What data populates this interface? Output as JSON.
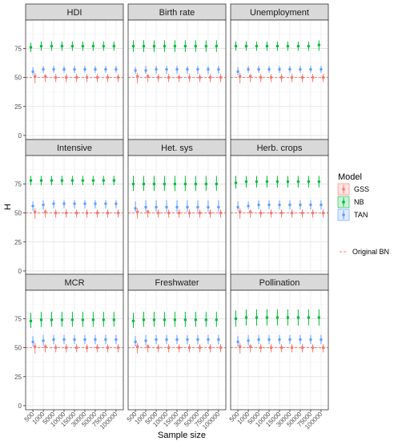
{
  "chart_data": {
    "type": "scatter",
    "subtype": "faceted point-range",
    "xlabel": "Sample size",
    "ylabel": "H",
    "ylim": [
      0,
      100
    ],
    "yticks": [
      0,
      25,
      50,
      75
    ],
    "categories": [
      "500",
      "1000",
      "5000",
      "10000",
      "15000",
      "30000",
      "50000",
      "75000",
      "100000"
    ],
    "legend": {
      "title": "Model",
      "placement": "right",
      "entries": [
        {
          "name": "GSS",
          "color": "#F8766D"
        },
        {
          "name": "NB",
          "color": "#00BA38"
        },
        {
          "name": "TAN",
          "color": "#619CFF"
        }
      ],
      "reference_label": "Original BN",
      "reference_color": "#F8766D"
    },
    "reference_line": {
      "name": "Original BN",
      "y": 50,
      "style": "dashed"
    },
    "grid": true,
    "facets": [
      {
        "title": "HDI",
        "series": [
          {
            "name": "NB",
            "values": [
              76,
              77,
              77,
              77,
              77,
              77,
              77,
              77,
              77
            ],
            "low": [
              72,
              73,
              73,
              73,
              73,
              73,
              73,
              73,
              73
            ],
            "high": [
              80,
              81,
              81,
              81,
              81,
              81,
              81,
              81,
              81
            ]
          },
          {
            "name": "TAN",
            "values": [
              55,
              57,
              57,
              57,
              57,
              57,
              57,
              57,
              57
            ],
            "low": [
              52,
              54,
              54,
              54,
              54,
              54,
              54,
              54,
              54
            ],
            "high": [
              59,
              60,
              60,
              60,
              60,
              60,
              60,
              60,
              60
            ]
          },
          {
            "name": "GSS",
            "values": [
              51,
              51,
              50,
              50,
              50,
              50,
              50,
              50,
              50
            ],
            "low": [
              45,
              46,
              46,
              46,
              46,
              46,
              46,
              46,
              46
            ],
            "high": [
              54,
              53,
              53,
              53,
              53,
              53,
              53,
              53,
              53
            ]
          }
        ]
      },
      {
        "title": "Birth rate",
        "series": [
          {
            "name": "NB",
            "values": [
              77,
              77,
              77,
              77,
              77,
              77,
              77,
              77,
              77
            ],
            "low": [
              72,
              72,
              72,
              72,
              72,
              72,
              72,
              72,
              72
            ],
            "high": [
              82,
              82,
              82,
              82,
              82,
              82,
              82,
              82,
              82
            ]
          },
          {
            "name": "TAN",
            "values": [
              56,
              56,
              57,
              57,
              57,
              57,
              57,
              57,
              57
            ],
            "low": [
              53,
              53,
              53,
              53,
              53,
              53,
              53,
              53,
              53
            ],
            "high": [
              59,
              60,
              60,
              60,
              60,
              60,
              60,
              60,
              60
            ]
          },
          {
            "name": "GSS",
            "values": [
              51,
              51,
              50,
              50,
              50,
              50,
              50,
              50,
              50
            ],
            "low": [
              45,
              46,
              46,
              46,
              46,
              46,
              46,
              46,
              46
            ],
            "high": [
              54,
              53,
              53,
              53,
              53,
              53,
              53,
              53,
              53
            ]
          }
        ]
      },
      {
        "title": "Unemployment",
        "series": [
          {
            "name": "NB",
            "values": [
              77,
              77,
              77,
              77,
              77,
              77,
              77,
              77,
              78
            ],
            "low": [
              73,
              73,
              73,
              73,
              73,
              73,
              73,
              73,
              73
            ],
            "high": [
              81,
              81,
              81,
              81,
              81,
              81,
              81,
              81,
              82
            ]
          },
          {
            "name": "TAN",
            "values": [
              55,
              57,
              57,
              57,
              57,
              57,
              57,
              57,
              57
            ],
            "low": [
              52,
              54,
              54,
              54,
              54,
              54,
              54,
              54,
              54
            ],
            "high": [
              59,
              60,
              60,
              60,
              60,
              60,
              60,
              60,
              60
            ]
          },
          {
            "name": "GSS",
            "values": [
              51,
              51,
              50,
              50,
              50,
              50,
              50,
              50,
              50
            ],
            "low": [
              45,
              46,
              46,
              46,
              46,
              46,
              46,
              46,
              46
            ],
            "high": [
              54,
              53,
              53,
              53,
              53,
              53,
              53,
              53,
              53
            ]
          }
        ]
      },
      {
        "title": "Intensive",
        "series": [
          {
            "name": "NB",
            "values": [
              78,
              78,
              78,
              78,
              78,
              78,
              78,
              78,
              78
            ],
            "low": [
              74,
              74,
              74,
              74,
              74,
              74,
              74,
              74,
              74
            ],
            "high": [
              82,
              82,
              82,
              82,
              82,
              82,
              82,
              82,
              82
            ]
          },
          {
            "name": "TAN",
            "values": [
              56,
              57,
              58,
              58,
              58,
              58,
              58,
              58,
              58
            ],
            "low": [
              52,
              53,
              54,
              54,
              54,
              54,
              54,
              54,
              54
            ],
            "high": [
              60,
              61,
              61,
              61,
              61,
              61,
              61,
              61,
              61
            ]
          },
          {
            "name": "GSS",
            "values": [
              51,
              51,
              50,
              50,
              50,
              50,
              50,
              50,
              50
            ],
            "low": [
              45,
              46,
              46,
              46,
              46,
              46,
              46,
              46,
              46
            ],
            "high": [
              54,
              53,
              53,
              53,
              53,
              53,
              53,
              53,
              53
            ]
          }
        ]
      },
      {
        "title": "Het. sys",
        "series": [
          {
            "name": "NB",
            "values": [
              75,
              75,
              75,
              75,
              75,
              75,
              75,
              75,
              75
            ],
            "low": [
              69,
              69,
              69,
              69,
              69,
              69,
              69,
              69,
              69
            ],
            "high": [
              82,
              82,
              82,
              82,
              82,
              82,
              82,
              82,
              82
            ]
          },
          {
            "name": "TAN",
            "values": [
              54,
              55,
              55,
              55,
              55,
              55,
              55,
              55,
              55
            ],
            "low": [
              51,
              51,
              51,
              51,
              51,
              51,
              51,
              51,
              51
            ],
            "high": [
              60,
              61,
              61,
              61,
              61,
              61,
              61,
              61,
              61
            ]
          },
          {
            "name": "GSS",
            "values": [
              51,
              51,
              50,
              50,
              50,
              50,
              50,
              50,
              50
            ],
            "low": [
              45,
              46,
              46,
              46,
              46,
              46,
              46,
              46,
              46
            ],
            "high": [
              54,
              53,
              53,
              53,
              53,
              53,
              53,
              53,
              53
            ]
          }
        ]
      },
      {
        "title": "Herb. crops",
        "series": [
          {
            "name": "NB",
            "values": [
              76,
              77,
              77,
              77,
              77,
              77,
              77,
              77,
              77
            ],
            "low": [
              71,
              72,
              72,
              72,
              72,
              72,
              72,
              72,
              72
            ],
            "high": [
              82,
              82,
              82,
              82,
              82,
              82,
              82,
              82,
              82
            ]
          },
          {
            "name": "TAN",
            "values": [
              55,
              56,
              57,
              57,
              57,
              57,
              57,
              57,
              57
            ],
            "low": [
              52,
              53,
              53,
              53,
              53,
              53,
              53,
              53,
              53
            ],
            "high": [
              60,
              60,
              61,
              61,
              61,
              61,
              61,
              61,
              61
            ]
          },
          {
            "name": "GSS",
            "values": [
              51,
              51,
              50,
              50,
              50,
              50,
              50,
              50,
              50
            ],
            "low": [
              45,
              46,
              46,
              46,
              46,
              46,
              46,
              46,
              46
            ],
            "high": [
              54,
              53,
              53,
              53,
              53,
              53,
              53,
              53,
              53
            ]
          }
        ]
      },
      {
        "title": "MCR",
        "series": [
          {
            "name": "NB",
            "values": [
              73,
              74,
              74,
              74,
              74,
              74,
              74,
              74,
              74
            ],
            "low": [
              67,
              68,
              68,
              68,
              68,
              68,
              68,
              68,
              68
            ],
            "high": [
              80,
              81,
              81,
              81,
              81,
              81,
              81,
              81,
              81
            ]
          },
          {
            "name": "TAN",
            "values": [
              55,
              56,
              57,
              57,
              57,
              57,
              57,
              57,
              57
            ],
            "low": [
              51,
              52,
              53,
              53,
              53,
              53,
              53,
              53,
              53
            ],
            "high": [
              60,
              61,
              61,
              61,
              61,
              61,
              61,
              61,
              61
            ]
          },
          {
            "name": "GSS",
            "values": [
              51,
              51,
              50,
              50,
              50,
              50,
              50,
              50,
              50
            ],
            "low": [
              45,
              46,
              46,
              46,
              46,
              46,
              46,
              46,
              46
            ],
            "high": [
              54,
              53,
              53,
              53,
              53,
              53,
              53,
              53,
              53
            ]
          }
        ]
      },
      {
        "title": "Freshwater",
        "series": [
          {
            "name": "NB",
            "values": [
              73,
              74,
              74,
              74,
              74,
              74,
              74,
              74,
              74
            ],
            "low": [
              67,
              68,
              68,
              68,
              68,
              68,
              68,
              68,
              68
            ],
            "high": [
              80,
              81,
              81,
              81,
              81,
              81,
              81,
              81,
              81
            ]
          },
          {
            "name": "TAN",
            "values": [
              55,
              56,
              57,
              57,
              57,
              57,
              57,
              57,
              57
            ],
            "low": [
              51,
              52,
              53,
              53,
              53,
              53,
              53,
              53,
              53
            ],
            "high": [
              60,
              61,
              61,
              61,
              61,
              61,
              61,
              61,
              61
            ]
          },
          {
            "name": "GSS",
            "values": [
              51,
              51,
              50,
              50,
              50,
              50,
              50,
              50,
              50
            ],
            "low": [
              45,
              46,
              46,
              46,
              46,
              46,
              46,
              46,
              46
            ],
            "high": [
              54,
              53,
              53,
              53,
              53,
              53,
              53,
              53,
              53
            ]
          }
        ]
      },
      {
        "title": "Pollination",
        "series": [
          {
            "name": "NB",
            "values": [
              75,
              76,
              76,
              76,
              76,
              76,
              76,
              76,
              76
            ],
            "low": [
              68,
              69,
              69,
              69,
              69,
              69,
              69,
              69,
              69
            ],
            "high": [
              82,
              83,
              83,
              83,
              83,
              83,
              83,
              83,
              83
            ]
          },
          {
            "name": "TAN",
            "values": [
              55,
              56,
              57,
              57,
              57,
              57,
              57,
              57,
              57
            ],
            "low": [
              51,
              52,
              53,
              53,
              53,
              53,
              53,
              53,
              53
            ],
            "high": [
              60,
              61,
              61,
              61,
              61,
              61,
              61,
              61,
              61
            ]
          },
          {
            "name": "GSS",
            "values": [
              51,
              51,
              50,
              50,
              50,
              50,
              50,
              50,
              50
            ],
            "low": [
              45,
              46,
              46,
              46,
              46,
              46,
              46,
              46,
              46
            ],
            "high": [
              54,
              53,
              53,
              53,
              53,
              53,
              53,
              53,
              53
            ]
          }
        ]
      }
    ]
  }
}
